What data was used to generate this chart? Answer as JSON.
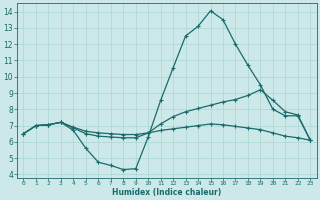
{
  "xlabel": "Humidex (Indice chaleur)",
  "xlim": [
    -0.5,
    23.5
  ],
  "ylim": [
    3.8,
    14.5
  ],
  "xticks": [
    0,
    1,
    2,
    3,
    4,
    5,
    6,
    7,
    8,
    9,
    10,
    11,
    12,
    13,
    14,
    15,
    16,
    17,
    18,
    19,
    20,
    21,
    22,
    23
  ],
  "yticks": [
    4,
    5,
    6,
    7,
    8,
    9,
    10,
    11,
    12,
    13,
    14
  ],
  "bg_color": "#cce8e8",
  "line_color": "#1a6b6b",
  "grid_color": "#aad4d4",
  "lines": [
    {
      "x": [
        0,
        1,
        2,
        3,
        4,
        5,
        6,
        7,
        8,
        9,
        10,
        11,
        12,
        13,
        14,
        15,
        16,
        17,
        18,
        19,
        20,
        21,
        22,
        23
      ],
      "y": [
        6.5,
        7.0,
        7.05,
        7.2,
        6.7,
        5.6,
        4.75,
        4.55,
        4.3,
        4.35,
        6.3,
        8.55,
        10.55,
        12.5,
        13.1,
        14.05,
        13.5,
        12.0,
        10.7,
        9.5,
        8.0,
        7.6,
        7.6,
        6.1
      ]
    },
    {
      "x": [
        0,
        1,
        2,
        3,
        4,
        5,
        6,
        7,
        8,
        9,
        10,
        11,
        12,
        13,
        14,
        15,
        16,
        17,
        18,
        19,
        20,
        21,
        22,
        23
      ],
      "y": [
        6.5,
        7.0,
        7.05,
        7.2,
        6.85,
        6.5,
        6.35,
        6.3,
        6.25,
        6.25,
        6.55,
        7.1,
        7.55,
        7.85,
        8.05,
        8.25,
        8.45,
        8.6,
        8.85,
        9.2,
        8.55,
        7.85,
        7.65,
        6.1
      ]
    },
    {
      "x": [
        0,
        1,
        2,
        3,
        4,
        5,
        6,
        7,
        8,
        9,
        10,
        11,
        12,
        13,
        14,
        15,
        16,
        17,
        18,
        19,
        20,
        21,
        22,
        23
      ],
      "y": [
        6.5,
        7.0,
        7.05,
        7.2,
        6.9,
        6.65,
        6.55,
        6.5,
        6.45,
        6.45,
        6.55,
        6.7,
        6.8,
        6.9,
        7.0,
        7.1,
        7.05,
        6.95,
        6.85,
        6.75,
        6.55,
        6.35,
        6.25,
        6.1
      ]
    }
  ]
}
